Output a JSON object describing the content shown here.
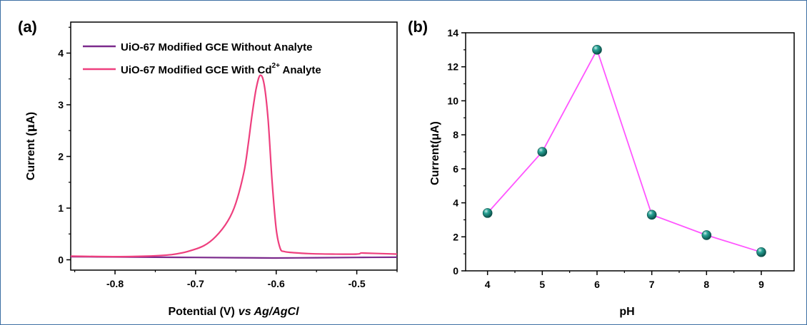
{
  "chart_data": [
    {
      "panel_label": "(a)",
      "type": "line",
      "xlabel": "Potential (V)",
      "xlabel_italic": "vs Ag/AgCl",
      "ylabel_prefix": "Current (",
      "ylabel_mu": "μ",
      "ylabel_suffix": "A)",
      "xlim": [
        -0.855,
        -0.45
      ],
      "ylim": [
        -0.2,
        4.6
      ],
      "xticks": [
        -0.8,
        -0.7,
        -0.6,
        -0.5
      ],
      "yticks": [
        0,
        1,
        2,
        3,
        4
      ],
      "legend_position": "top-left",
      "series": [
        {
          "name": "UiO-67 Modified GCE Without Analyte",
          "color": "#7b2a8c",
          "x": [
            -0.855,
            -0.8,
            -0.75,
            -0.7,
            -0.65,
            -0.6,
            -0.55,
            -0.5,
            -0.45
          ],
          "y": [
            0.06,
            0.055,
            0.05,
            0.045,
            0.04,
            0.035,
            0.04,
            0.045,
            0.05
          ]
        },
        {
          "name_prefix": "UiO-67 Modified GCE With Cd",
          "name_sup": "2+",
          "name_suffix": " Analyte",
          "color": "#ee3f7e",
          "x": [
            -0.855,
            -0.8,
            -0.76,
            -0.73,
            -0.71,
            -0.69,
            -0.675,
            -0.66,
            -0.65,
            -0.64,
            -0.635,
            -0.63,
            -0.625,
            -0.62,
            -0.615,
            -0.61,
            -0.605,
            -0.6,
            -0.595,
            -0.59,
            -0.58,
            -0.56,
            -0.53,
            -0.5,
            -0.495,
            -0.49,
            -0.47,
            -0.45
          ],
          "y": [
            0.07,
            0.06,
            0.07,
            0.1,
            0.16,
            0.27,
            0.45,
            0.75,
            1.1,
            1.7,
            2.2,
            2.8,
            3.3,
            3.57,
            3.4,
            2.7,
            1.5,
            0.6,
            0.22,
            0.16,
            0.14,
            0.12,
            0.11,
            0.11,
            0.13,
            0.13,
            0.12,
            0.11
          ]
        }
      ]
    },
    {
      "panel_label": "(b)",
      "type": "line",
      "xlabel": "pH",
      "ylabel": "Current(μA)",
      "xlim": [
        3.6,
        9.6
      ],
      "ylim": [
        0,
        14
      ],
      "xticks": [
        4,
        5,
        6,
        7,
        8,
        9
      ],
      "yticks": [
        0,
        2,
        4,
        6,
        8,
        10,
        12,
        14
      ],
      "series": [
        {
          "line_color": "#ff55ff",
          "marker_color": "#138a7e",
          "x": [
            4,
            5,
            6,
            7,
            8,
            9
          ],
          "y": [
            3.4,
            7.0,
            13.0,
            3.3,
            2.1,
            1.1
          ]
        }
      ]
    }
  ]
}
